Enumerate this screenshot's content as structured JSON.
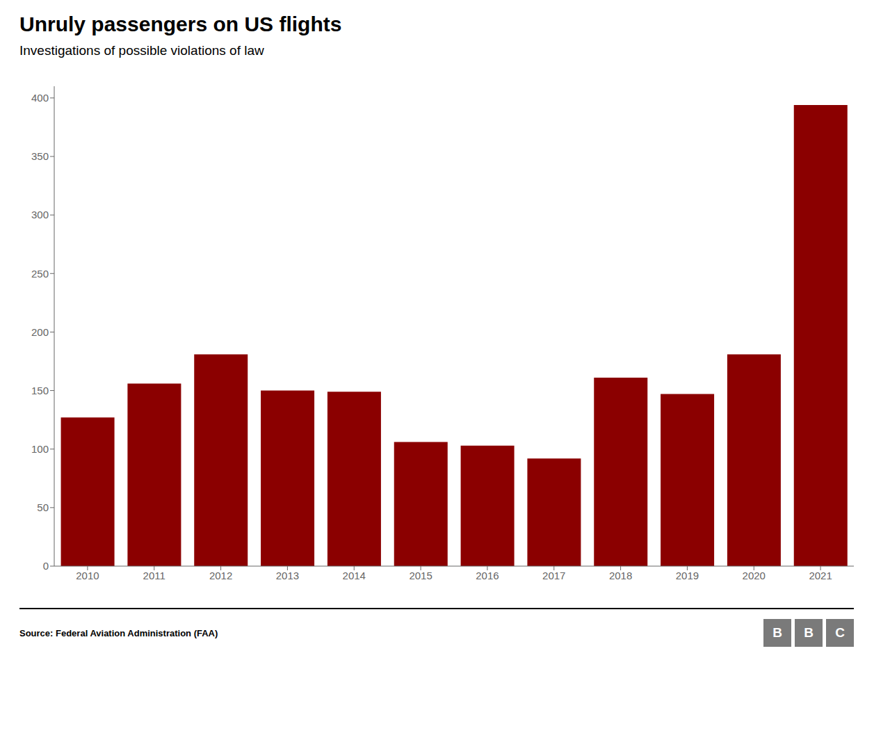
{
  "chart_data": {
    "type": "bar",
    "title": "Unruly passengers on US flights",
    "subtitle": "Investigations of possible violations of law",
    "source": "Source: Federal Aviation Administration (FAA)",
    "annotations": [
      "B",
      "B",
      "C"
    ],
    "categories": [
      "2010",
      "2011",
      "2012",
      "2013",
      "2014",
      "2015",
      "2016",
      "2017",
      "2018",
      "2019",
      "2020",
      "2021"
    ],
    "values": [
      127,
      156,
      181,
      150,
      149,
      106,
      103,
      92,
      161,
      147,
      181,
      394
    ],
    "color": "#8B0000",
    "ylim": [
      0,
      410
    ],
    "yticks": [
      0,
      50,
      100,
      150,
      200,
      250,
      300,
      350,
      400
    ],
    "grid": false
  }
}
